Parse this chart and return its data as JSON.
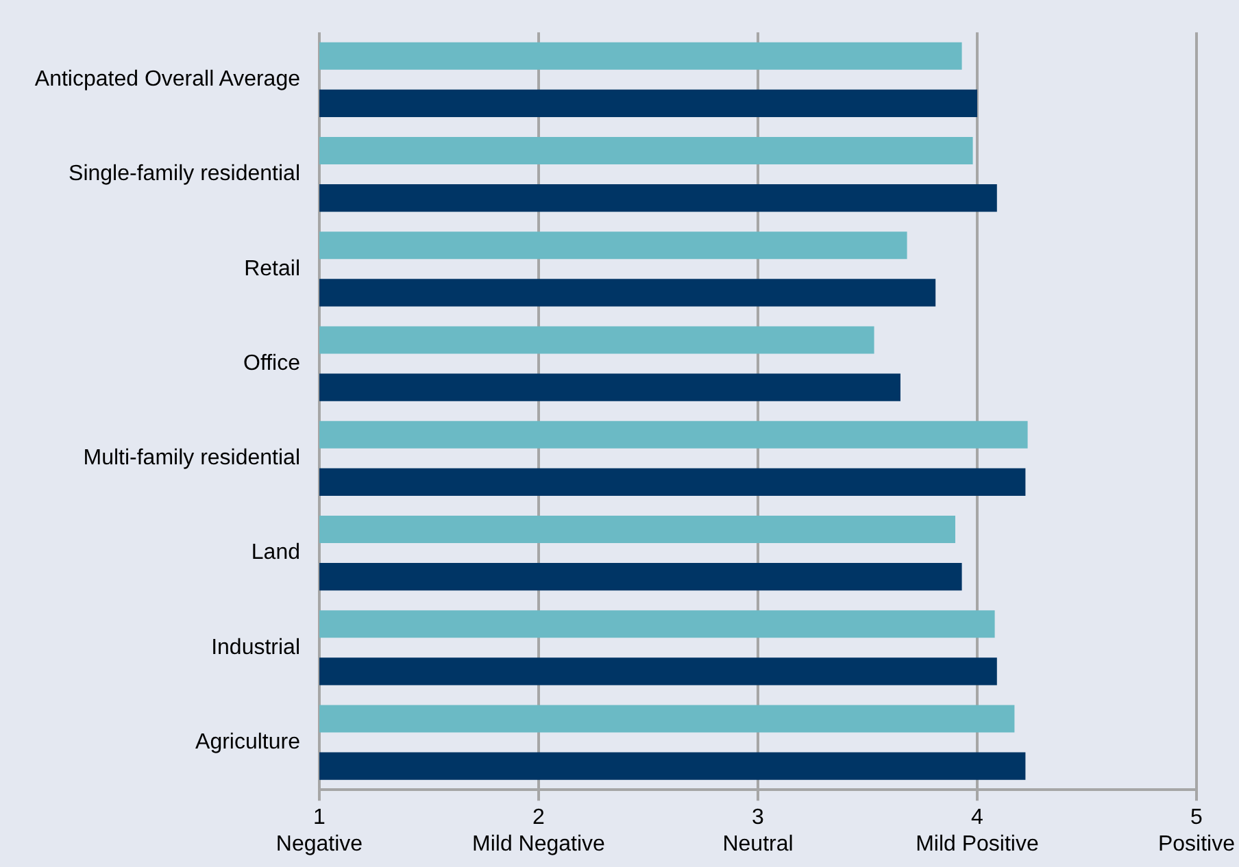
{
  "chart_data": {
    "type": "bar",
    "orientation": "horizontal",
    "categories": [
      "Anticpated Overall Average",
      "Single-family residential",
      "Retail",
      "Office",
      "Multi-family residential",
      "Land",
      "Industrial",
      "Agriculture"
    ],
    "series": [
      {
        "color": "#6bbac5",
        "values": [
          3.93,
          3.98,
          3.68,
          3.53,
          4.23,
          3.9,
          4.08,
          4.17
        ]
      },
      {
        "color": "#003565",
        "values": [
          4.0,
          4.09,
          3.81,
          3.65,
          4.22,
          3.93,
          4.09,
          4.22
        ]
      }
    ],
    "xlim": [
      1,
      5
    ],
    "xticks": [
      {
        "value": 1,
        "label": "1\nNegative"
      },
      {
        "value": 2,
        "label": "2\nMild Negative"
      },
      {
        "value": 3,
        "label": "3\nNeutral"
      },
      {
        "value": 4,
        "label": "4\nMild Positive"
      },
      {
        "value": 5,
        "label": "5\nPositive"
      }
    ],
    "grid": "x",
    "legend": false
  }
}
